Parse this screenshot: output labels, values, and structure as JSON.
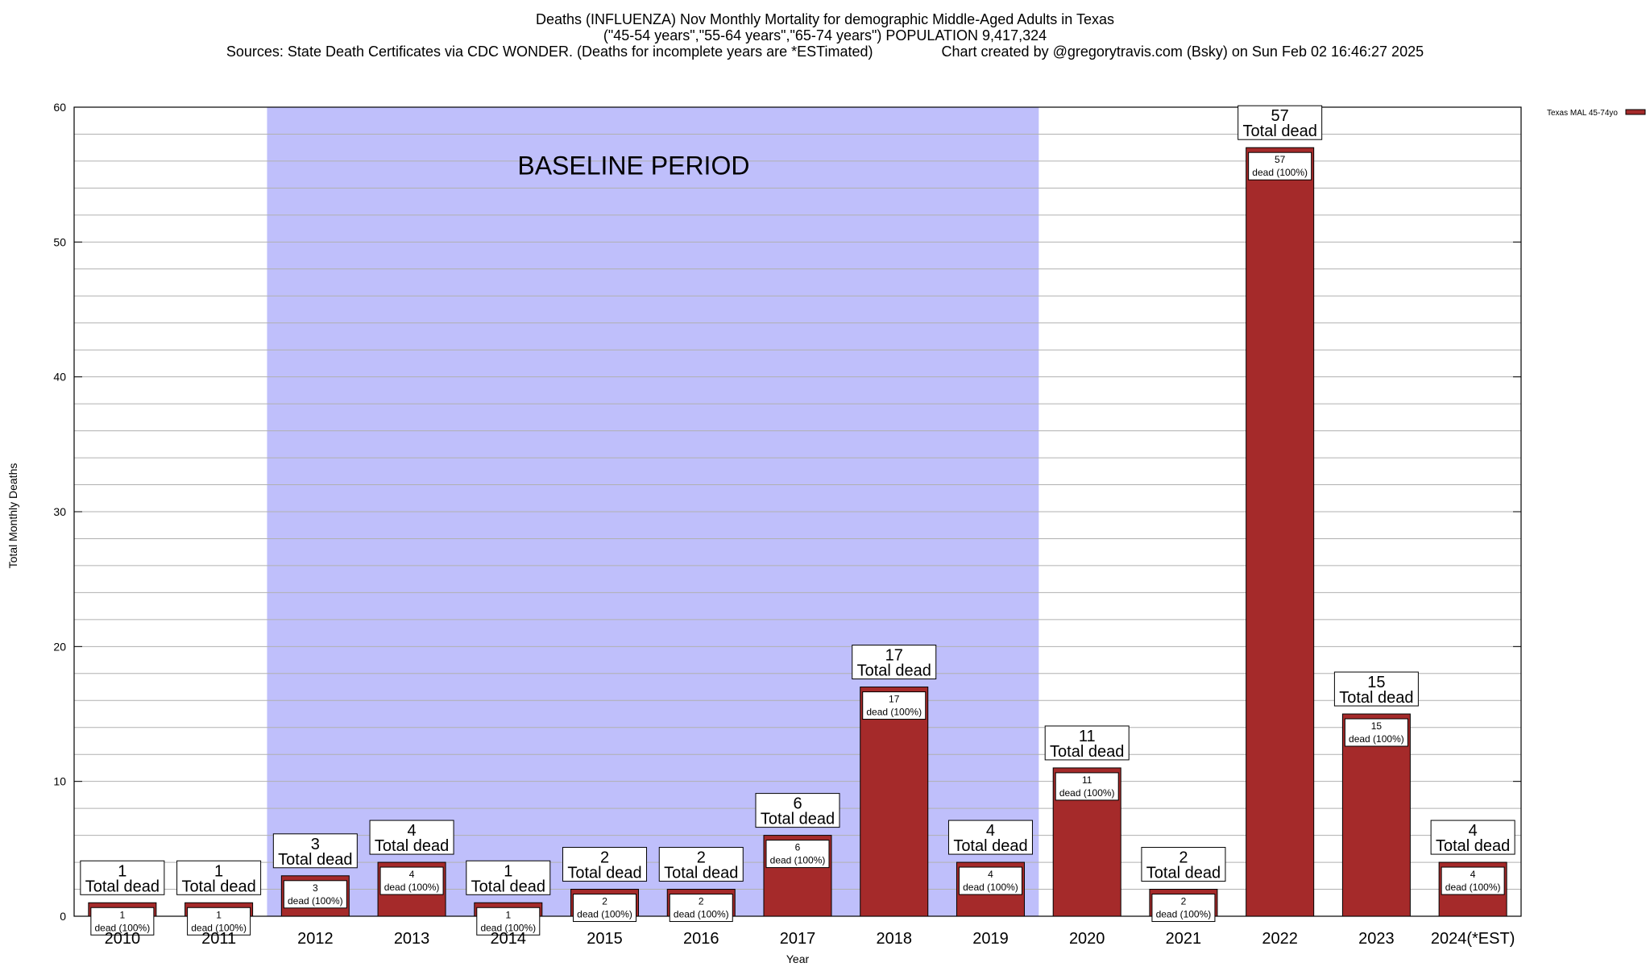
{
  "title_lines": [
    "Deaths (INFLUENZA) Nov Monthly Mortality for demographic Middle-Aged Adults in Texas",
    "(\"45-54 years\",\"55-64 years\",\"65-74 years\") POPULATION 9,417,324",
    "Sources: State Death Certificates via CDC WONDER. (Deaths for incomplete years are *ESTimated)                 Chart created by @gregorytravis.com (Bsky) on Sun Feb 02 16:46:27 2025"
  ],
  "chart_data": {
    "type": "bar",
    "xlabel": "Year",
    "ylabel": "Total Monthly Deaths",
    "ylim": [
      0,
      60
    ],
    "yticks": [
      0,
      10,
      20,
      30,
      40,
      50,
      60
    ],
    "minor_grid_step": 2,
    "categories": [
      "2010",
      "2011",
      "2012",
      "2013",
      "2014",
      "2015",
      "2016",
      "2017",
      "2018",
      "2019",
      "2020",
      "2021",
      "2022",
      "2023",
      "2024(*EST)"
    ],
    "series": [
      {
        "name": "Texas MAL 45-74yo",
        "color": "#a52a2a",
        "values": [
          1,
          1,
          3,
          4,
          1,
          2,
          2,
          6,
          17,
          4,
          11,
          2,
          57,
          15,
          4
        ]
      }
    ],
    "total_label_suffix": "Total dead",
    "inner_label_suffix": "dead (100%)",
    "baseline": {
      "label": "BASELINE PERIOD",
      "from": "2012",
      "to": "2019",
      "color": "#bfbffb"
    },
    "legend_position": "top-right",
    "grid": true
  }
}
